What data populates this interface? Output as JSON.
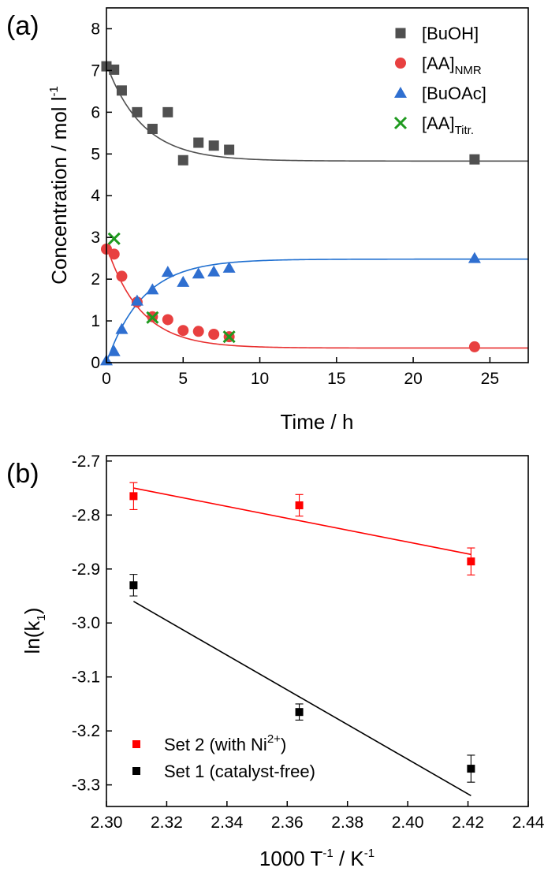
{
  "chart_data": [
    {
      "panel": "(a)",
      "type": "scatter",
      "xlabel": "Time / h",
      "ylabel": {
        "main": "Concentration / mol l",
        "sup": "-1"
      },
      "xlim": [
        0,
        27.5
      ],
      "ylim": [
        0,
        8.5
      ],
      "xticks": [
        0,
        5,
        10,
        15,
        20,
        25
      ],
      "yticks": [
        0,
        1,
        2,
        3,
        4,
        5,
        6,
        7,
        8
      ],
      "grid": false,
      "legend_position": "top-right",
      "series": [
        {
          "name": "[BuOH]",
          "legend": {
            "main": "[BuOH]",
            "sub": ""
          },
          "marker": "square",
          "color": "#505050",
          "fit_color": "#505050",
          "x": [
            0,
            0.5,
            1,
            2,
            3,
            4,
            5,
            6,
            7,
            8,
            24
          ],
          "y": [
            7.1,
            7.02,
            6.52,
            6.0,
            5.6,
            6.0,
            4.85,
            5.27,
            5.2,
            5.1,
            4.87
          ],
          "fit": {
            "model": "exp_decay",
            "y0": 7.15,
            "yinf": 4.83,
            "k": 0.42
          }
        },
        {
          "name": "[AA]NMR",
          "legend": {
            "main": "[AA]",
            "sub": "NMR"
          },
          "marker": "circle",
          "color": "#e84040",
          "fit_color": "#e83030",
          "x": [
            0,
            0.5,
            1,
            2,
            3,
            4,
            5,
            6,
            7,
            8,
            24
          ],
          "y": [
            2.72,
            2.6,
            2.07,
            1.45,
            1.1,
            1.03,
            0.77,
            0.75,
            0.68,
            0.62,
            0.38
          ],
          "fit": {
            "model": "exp_decay",
            "y0": 2.8,
            "yinf": 0.35,
            "k": 0.45
          }
        },
        {
          "name": "[BuOAc]",
          "legend": {
            "main": "[BuOAc]",
            "sub": ""
          },
          "marker": "triangle",
          "color": "#2f6fd0",
          "fit_color": "#1f6fd0",
          "x": [
            0,
            0.5,
            1,
            2,
            3,
            4,
            5,
            6,
            7,
            8,
            24
          ],
          "y": [
            0.05,
            0.27,
            0.8,
            1.48,
            1.75,
            2.17,
            1.93,
            2.13,
            2.18,
            2.27,
            2.5
          ],
          "fit": {
            "model": "exp_rise",
            "y0": 0.0,
            "yinf": 2.48,
            "k": 0.42
          }
        },
        {
          "name": "[AA]Titr.",
          "legend": {
            "main": "[AA]",
            "sub": "Titr."
          },
          "marker": "cross",
          "color": "#1f9a1f",
          "x": [
            0.5,
            3,
            8
          ],
          "y": [
            2.97,
            1.08,
            0.62
          ]
        }
      ]
    },
    {
      "panel": "(b)",
      "type": "scatter",
      "xlabel": {
        "main": "1000 T",
        "sup1": "-1",
        "mid": " / K",
        "sup2": "-1"
      },
      "ylabel": {
        "main": "ln(k",
        "sub": "1",
        "end": ")"
      },
      "xlim": [
        2.3,
        2.44
      ],
      "ylim": [
        -3.34,
        -2.69
      ],
      "xticks": [
        2.3,
        2.32,
        2.34,
        2.36,
        2.38,
        2.4,
        2.42,
        2.44
      ],
      "xtick_labels": [
        "2.30",
        "2.32",
        "2.34",
        "2.36",
        "2.38",
        "2.40",
        "2.42",
        "2.44"
      ],
      "yticks": [
        -2.7,
        -2.8,
        -2.9,
        -3.0,
        -3.1,
        -3.2,
        -3.3
      ],
      "ytick_labels": [
        "-2.7",
        "-2.8",
        "-2.9",
        "-3.0",
        "-3.1",
        "-3.2",
        "-3.3"
      ],
      "grid": false,
      "legend_position": "bottom-left",
      "series": [
        {
          "name": "Set 2 (with Ni2+)",
          "legend": {
            "main": "Set 2 (with Ni",
            "sup": "2+",
            "end": ")"
          },
          "marker": "square",
          "color": "#ff0000",
          "x": [
            2.309,
            2.364,
            2.421
          ],
          "y": [
            -2.765,
            -2.782,
            -2.886
          ],
          "error": [
            0.025,
            0.02,
            0.025
          ],
          "fit": {
            "x": [
              2.309,
              2.421
            ],
            "y": [
              -2.75,
              -2.873
            ]
          }
        },
        {
          "name": "Set 1 (catalyst-free)",
          "legend": {
            "main": "Set 1 (catalyst-free)"
          },
          "marker": "square",
          "color": "#000000",
          "x": [
            2.309,
            2.364,
            2.421
          ],
          "y": [
            -2.93,
            -3.165,
            -3.27
          ],
          "error": [
            0.02,
            0.015,
            0.025
          ],
          "fit": {
            "x": [
              2.309,
              2.421
            ],
            "y": [
              -2.96,
              -3.32
            ]
          }
        }
      ]
    }
  ]
}
